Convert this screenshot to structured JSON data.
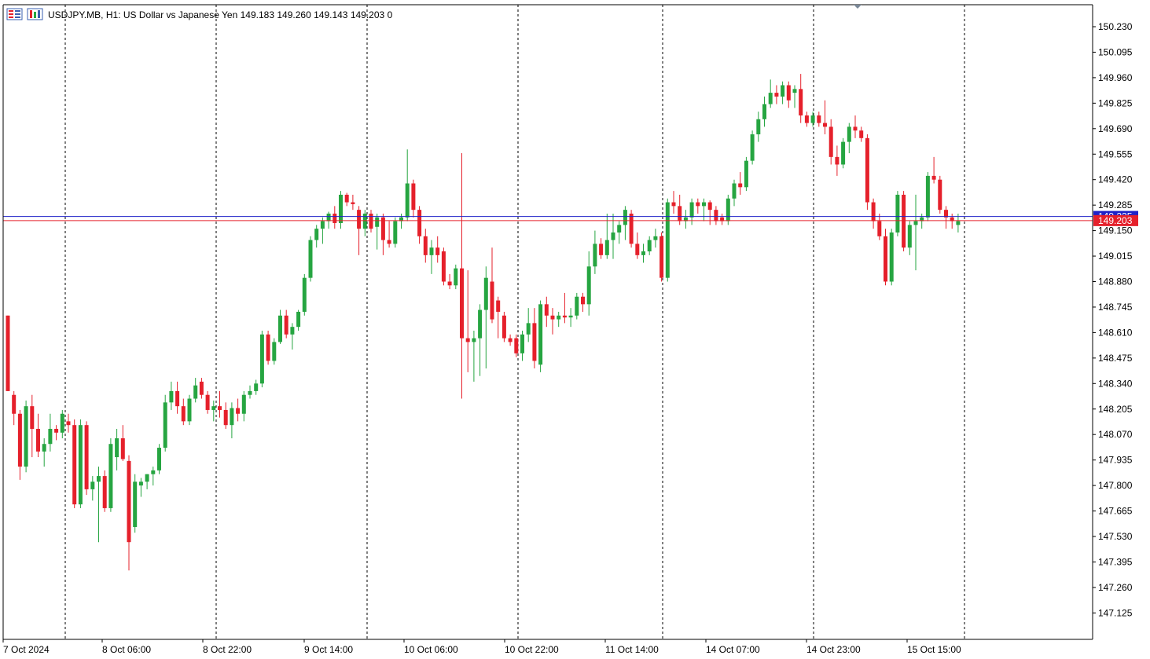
{
  "header": {
    "symbol": "USDJPY.MB",
    "timeframe": "H1:",
    "description": "US Dollar vs Japanese Yen",
    "open": "149.183",
    "high": "149.260",
    "low": "149.143",
    "close": "149.203",
    "volume": "0"
  },
  "colors": {
    "bull": "#26a541",
    "bear": "#e5202b",
    "grid": "#000000",
    "ask_line": "#1f22c8",
    "bid_line": "#e5202b",
    "background": "#ffffff"
  },
  "chart_data": {
    "type": "candlestick",
    "title": "USDJPY.MB, H1: US Dollar vs Japanese Yen",
    "xlabel": "",
    "ylabel": "",
    "ylim": [
      147.04,
      150.31
    ],
    "y_ticks": [
      "150.230",
      "150.095",
      "149.960",
      "149.825",
      "149.690",
      "149.555",
      "149.420",
      "149.285",
      "149.150",
      "149.015",
      "148.880",
      "148.745",
      "148.610",
      "148.475",
      "148.340",
      "148.205",
      "148.070",
      "147.935",
      "147.800",
      "147.665",
      "147.530",
      "147.395",
      "147.260",
      "147.125"
    ],
    "x_ticks": [
      "7 Oct 2024",
      "8 Oct 06:00",
      "8 Oct 22:00",
      "9 Oct 14:00",
      "10 Oct 06:00",
      "10 Oct 22:00",
      "11 Oct 14:00",
      "14 Oct 07:00",
      "14 Oct 23:00",
      "15 Oct 15:00"
    ],
    "grid": "vertical-dashed",
    "ask_price": "149.225",
    "bid_price": "149.203",
    "candles": [
      {
        "o": 148.7,
        "h": 148.7,
        "l": 148.3,
        "c": 148.3
      },
      {
        "o": 148.28,
        "h": 148.3,
        "l": 148.12,
        "c": 148.18
      },
      {
        "o": 148.18,
        "h": 148.2,
        "l": 147.83,
        "c": 147.9
      },
      {
        "o": 147.9,
        "h": 148.25,
        "l": 147.87,
        "c": 148.22
      },
      {
        "o": 148.22,
        "h": 148.28,
        "l": 147.95,
        "c": 148.1
      },
      {
        "o": 148.1,
        "h": 148.18,
        "l": 147.95,
        "c": 147.98
      },
      {
        "o": 147.98,
        "h": 148.05,
        "l": 147.9,
        "c": 148.02
      },
      {
        "o": 148.02,
        "h": 148.18,
        "l": 147.98,
        "c": 148.1
      },
      {
        "o": 148.1,
        "h": 148.12,
        "l": 148.04,
        "c": 148.08
      },
      {
        "o": 148.08,
        "h": 148.2,
        "l": 148.05,
        "c": 148.18
      },
      {
        "o": 148.14,
        "h": 148.18,
        "l": 148.08,
        "c": 148.12
      },
      {
        "o": 148.12,
        "h": 148.15,
        "l": 147.68,
        "c": 147.7
      },
      {
        "o": 147.7,
        "h": 148.15,
        "l": 147.68,
        "c": 148.12
      },
      {
        "o": 148.12,
        "h": 148.14,
        "l": 147.75,
        "c": 147.78
      },
      {
        "o": 147.78,
        "h": 147.85,
        "l": 147.72,
        "c": 147.82
      },
      {
        "o": 147.82,
        "h": 147.9,
        "l": 147.5,
        "c": 147.85
      },
      {
        "o": 147.85,
        "h": 147.88,
        "l": 147.66,
        "c": 147.68
      },
      {
        "o": 147.68,
        "h": 148.05,
        "l": 147.66,
        "c": 148.02
      },
      {
        "o": 147.95,
        "h": 148.1,
        "l": 147.88,
        "c": 148.05
      },
      {
        "o": 148.05,
        "h": 148.12,
        "l": 147.93,
        "c": 147.94
      },
      {
        "o": 147.93,
        "h": 147.96,
        "l": 147.35,
        "c": 147.5
      },
      {
        "o": 147.58,
        "h": 147.86,
        "l": 147.55,
        "c": 147.82
      },
      {
        "o": 147.8,
        "h": 147.84,
        "l": 147.74,
        "c": 147.82
      },
      {
        "o": 147.82,
        "h": 147.86,
        "l": 147.78,
        "c": 147.86
      },
      {
        "o": 147.86,
        "h": 147.9,
        "l": 147.8,
        "c": 147.88
      },
      {
        "o": 147.88,
        "h": 148.02,
        "l": 147.86,
        "c": 148.0
      },
      {
        "o": 148.0,
        "h": 148.28,
        "l": 147.98,
        "c": 148.24
      },
      {
        "o": 148.24,
        "h": 148.35,
        "l": 148.2,
        "c": 148.3
      },
      {
        "o": 148.3,
        "h": 148.35,
        "l": 148.18,
        "c": 148.22
      },
      {
        "o": 148.22,
        "h": 148.26,
        "l": 148.12,
        "c": 148.14
      },
      {
        "o": 148.14,
        "h": 148.28,
        "l": 148.12,
        "c": 148.26
      },
      {
        "o": 148.26,
        "h": 148.37,
        "l": 148.24,
        "c": 148.33
      },
      {
        "o": 148.35,
        "h": 148.37,
        "l": 148.26,
        "c": 148.28
      },
      {
        "o": 148.28,
        "h": 148.3,
        "l": 148.18,
        "c": 148.2
      },
      {
        "o": 148.2,
        "h": 148.25,
        "l": 148.14,
        "c": 148.22
      },
      {
        "o": 148.22,
        "h": 148.3,
        "l": 148.16,
        "c": 148.2
      },
      {
        "o": 148.2,
        "h": 148.24,
        "l": 148.1,
        "c": 148.12
      },
      {
        "o": 148.12,
        "h": 148.24,
        "l": 148.05,
        "c": 148.21
      },
      {
        "o": 148.21,
        "h": 148.26,
        "l": 148.14,
        "c": 148.18
      },
      {
        "o": 148.18,
        "h": 148.3,
        "l": 148.14,
        "c": 148.28
      },
      {
        "o": 148.28,
        "h": 148.33,
        "l": 148.26,
        "c": 148.3
      },
      {
        "o": 148.3,
        "h": 148.36,
        "l": 148.28,
        "c": 148.34
      },
      {
        "o": 148.34,
        "h": 148.62,
        "l": 148.32,
        "c": 148.6
      },
      {
        "o": 148.6,
        "h": 148.62,
        "l": 148.44,
        "c": 148.46
      },
      {
        "o": 148.46,
        "h": 148.58,
        "l": 148.44,
        "c": 148.56
      },
      {
        "o": 148.56,
        "h": 148.73,
        "l": 148.55,
        "c": 148.7
      },
      {
        "o": 148.7,
        "h": 148.73,
        "l": 148.58,
        "c": 148.6
      },
      {
        "o": 148.6,
        "h": 148.66,
        "l": 148.52,
        "c": 148.64
      },
      {
        "o": 148.64,
        "h": 148.73,
        "l": 148.62,
        "c": 148.72
      },
      {
        "o": 148.72,
        "h": 148.92,
        "l": 148.7,
        "c": 148.9
      },
      {
        "o": 148.9,
        "h": 149.12,
        "l": 148.88,
        "c": 149.1
      },
      {
        "o": 149.1,
        "h": 149.18,
        "l": 149.06,
        "c": 149.16
      },
      {
        "o": 149.16,
        "h": 149.22,
        "l": 149.08,
        "c": 149.2
      },
      {
        "o": 149.2,
        "h": 149.25,
        "l": 149.16,
        "c": 149.24
      },
      {
        "o": 149.24,
        "h": 149.28,
        "l": 149.16,
        "c": 149.19
      },
      {
        "o": 149.19,
        "h": 149.36,
        "l": 149.16,
        "c": 149.34
      },
      {
        "o": 149.34,
        "h": 149.35,
        "l": 149.28,
        "c": 149.3
      },
      {
        "o": 149.3,
        "h": 149.34,
        "l": 149.26,
        "c": 149.29
      },
      {
        "o": 149.26,
        "h": 149.28,
        "l": 149.02,
        "c": 149.16
      },
      {
        "o": 149.16,
        "h": 149.26,
        "l": 149.12,
        "c": 149.24
      },
      {
        "o": 149.24,
        "h": 149.26,
        "l": 149.14,
        "c": 149.16
      },
      {
        "o": 149.17,
        "h": 149.24,
        "l": 149.05,
        "c": 149.22
      },
      {
        "o": 149.22,
        "h": 149.24,
        "l": 149.02,
        "c": 149.1
      },
      {
        "o": 149.1,
        "h": 149.2,
        "l": 149.06,
        "c": 149.08
      },
      {
        "o": 149.08,
        "h": 149.22,
        "l": 149.06,
        "c": 149.2
      },
      {
        "o": 149.2,
        "h": 149.24,
        "l": 149.16,
        "c": 149.22
      },
      {
        "o": 149.22,
        "h": 149.58,
        "l": 149.2,
        "c": 149.4
      },
      {
        "o": 149.4,
        "h": 149.42,
        "l": 149.22,
        "c": 149.26
      },
      {
        "o": 149.26,
        "h": 149.28,
        "l": 149.08,
        "c": 149.12
      },
      {
        "o": 149.12,
        "h": 149.16,
        "l": 148.98,
        "c": 149.02
      },
      {
        "o": 149.02,
        "h": 149.1,
        "l": 148.92,
        "c": 149.06
      },
      {
        "o": 149.06,
        "h": 149.12,
        "l": 148.98,
        "c": 149.02
      },
      {
        "o": 149.04,
        "h": 149.06,
        "l": 148.86,
        "c": 148.88
      },
      {
        "o": 148.88,
        "h": 148.92,
        "l": 148.84,
        "c": 148.86
      },
      {
        "o": 148.86,
        "h": 148.97,
        "l": 148.84,
        "c": 148.95
      },
      {
        "o": 148.95,
        "h": 149.56,
        "l": 148.26,
        "c": 148.58
      },
      {
        "o": 148.58,
        "h": 148.94,
        "l": 148.4,
        "c": 148.56
      },
      {
        "o": 148.56,
        "h": 148.62,
        "l": 148.35,
        "c": 148.58
      },
      {
        "o": 148.58,
        "h": 148.76,
        "l": 148.38,
        "c": 148.73
      },
      {
        "o": 148.73,
        "h": 148.96,
        "l": 148.42,
        "c": 148.9
      },
      {
        "o": 148.88,
        "h": 149.06,
        "l": 148.66,
        "c": 148.68
      },
      {
        "o": 148.78,
        "h": 148.8,
        "l": 148.58,
        "c": 148.72
      },
      {
        "o": 148.7,
        "h": 148.72,
        "l": 148.56,
        "c": 148.58
      },
      {
        "o": 148.58,
        "h": 148.6,
        "l": 148.54,
        "c": 148.56
      },
      {
        "o": 148.58,
        "h": 148.6,
        "l": 148.48,
        "c": 148.5
      },
      {
        "o": 148.5,
        "h": 148.62,
        "l": 148.46,
        "c": 148.6
      },
      {
        "o": 148.6,
        "h": 148.74,
        "l": 148.56,
        "c": 148.66
      },
      {
        "o": 148.66,
        "h": 148.74,
        "l": 148.42,
        "c": 148.46
      },
      {
        "o": 148.44,
        "h": 148.78,
        "l": 148.4,
        "c": 148.76
      },
      {
        "o": 148.76,
        "h": 148.8,
        "l": 148.64,
        "c": 148.7
      },
      {
        "o": 148.7,
        "h": 148.74,
        "l": 148.6,
        "c": 148.68
      },
      {
        "o": 148.68,
        "h": 148.72,
        "l": 148.64,
        "c": 148.7
      },
      {
        "o": 148.7,
        "h": 148.82,
        "l": 148.66,
        "c": 148.69
      },
      {
        "o": 148.69,
        "h": 148.74,
        "l": 148.64,
        "c": 148.7
      },
      {
        "o": 148.7,
        "h": 148.82,
        "l": 148.68,
        "c": 148.8
      },
      {
        "o": 148.8,
        "h": 148.82,
        "l": 148.72,
        "c": 148.76
      },
      {
        "o": 148.76,
        "h": 149.04,
        "l": 148.7,
        "c": 148.96
      },
      {
        "o": 148.96,
        "h": 149.15,
        "l": 148.92,
        "c": 149.08
      },
      {
        "o": 149.08,
        "h": 149.11,
        "l": 149.0,
        "c": 149.02
      },
      {
        "o": 149.02,
        "h": 149.24,
        "l": 149.0,
        "c": 149.1
      },
      {
        "o": 149.1,
        "h": 149.24,
        "l": 149.0,
        "c": 149.14
      },
      {
        "o": 149.14,
        "h": 149.2,
        "l": 149.08,
        "c": 149.18
      },
      {
        "o": 149.18,
        "h": 149.28,
        "l": 149.1,
        "c": 149.26
      },
      {
        "o": 149.24,
        "h": 149.26,
        "l": 149.06,
        "c": 149.08
      },
      {
        "o": 149.08,
        "h": 149.14,
        "l": 149.0,
        "c": 149.02
      },
      {
        "o": 149.02,
        "h": 149.08,
        "l": 148.98,
        "c": 149.04
      },
      {
        "o": 149.04,
        "h": 149.12,
        "l": 149.02,
        "c": 149.1
      },
      {
        "o": 149.1,
        "h": 149.16,
        "l": 149.06,
        "c": 149.12
      },
      {
        "o": 149.12,
        "h": 149.14,
        "l": 148.88,
        "c": 148.9
      },
      {
        "o": 148.9,
        "h": 149.32,
        "l": 148.88,
        "c": 149.3
      },
      {
        "o": 149.3,
        "h": 149.36,
        "l": 149.24,
        "c": 149.28
      },
      {
        "o": 149.28,
        "h": 149.34,
        "l": 149.18,
        "c": 149.2
      },
      {
        "o": 149.2,
        "h": 149.26,
        "l": 149.16,
        "c": 149.22
      },
      {
        "o": 149.22,
        "h": 149.32,
        "l": 149.18,
        "c": 149.3
      },
      {
        "o": 149.3,
        "h": 149.32,
        "l": 149.24,
        "c": 149.28
      },
      {
        "o": 149.28,
        "h": 149.32,
        "l": 149.2,
        "c": 149.3
      },
      {
        "o": 149.3,
        "h": 149.31,
        "l": 149.18,
        "c": 149.26
      },
      {
        "o": 149.26,
        "h": 149.28,
        "l": 149.18,
        "c": 149.2
      },
      {
        "o": 149.22,
        "h": 149.24,
        "l": 149.18,
        "c": 149.2
      },
      {
        "o": 149.2,
        "h": 149.34,
        "l": 149.18,
        "c": 149.32
      },
      {
        "o": 149.32,
        "h": 149.42,
        "l": 149.28,
        "c": 149.4
      },
      {
        "o": 149.4,
        "h": 149.46,
        "l": 149.34,
        "c": 149.38
      },
      {
        "o": 149.38,
        "h": 149.54,
        "l": 149.36,
        "c": 149.52
      },
      {
        "o": 149.52,
        "h": 149.68,
        "l": 149.5,
        "c": 149.66
      },
      {
        "o": 149.66,
        "h": 149.78,
        "l": 149.62,
        "c": 149.74
      },
      {
        "o": 149.74,
        "h": 149.86,
        "l": 149.7,
        "c": 149.82
      },
      {
        "o": 149.82,
        "h": 149.95,
        "l": 149.8,
        "c": 149.88
      },
      {
        "o": 149.88,
        "h": 149.92,
        "l": 149.82,
        "c": 149.86
      },
      {
        "o": 149.86,
        "h": 149.94,
        "l": 149.82,
        "c": 149.92
      },
      {
        "o": 149.92,
        "h": 149.94,
        "l": 149.8,
        "c": 149.84
      },
      {
        "o": 149.88,
        "h": 149.92,
        "l": 149.8,
        "c": 149.9
      },
      {
        "o": 149.9,
        "h": 149.98,
        "l": 149.72,
        "c": 149.76
      },
      {
        "o": 149.76,
        "h": 149.78,
        "l": 149.7,
        "c": 149.72
      },
      {
        "o": 149.72,
        "h": 149.78,
        "l": 149.7,
        "c": 149.76
      },
      {
        "o": 149.76,
        "h": 149.78,
        "l": 149.7,
        "c": 149.72
      },
      {
        "o": 149.72,
        "h": 149.84,
        "l": 149.66,
        "c": 149.7
      },
      {
        "o": 149.7,
        "h": 149.74,
        "l": 149.5,
        "c": 149.54
      },
      {
        "o": 149.54,
        "h": 149.6,
        "l": 149.44,
        "c": 149.5
      },
      {
        "o": 149.5,
        "h": 149.64,
        "l": 149.48,
        "c": 149.62
      },
      {
        "o": 149.62,
        "h": 149.72,
        "l": 149.56,
        "c": 149.7
      },
      {
        "o": 149.7,
        "h": 149.76,
        "l": 149.64,
        "c": 149.68
      },
      {
        "o": 149.68,
        "h": 149.7,
        "l": 149.62,
        "c": 149.64
      },
      {
        "o": 149.64,
        "h": 149.66,
        "l": 149.26,
        "c": 149.3
      },
      {
        "o": 149.3,
        "h": 149.32,
        "l": 149.16,
        "c": 149.2
      },
      {
        "o": 149.2,
        "h": 149.24,
        "l": 149.1,
        "c": 149.12
      },
      {
        "o": 149.12,
        "h": 149.16,
        "l": 148.86,
        "c": 148.88
      },
      {
        "o": 148.88,
        "h": 149.16,
        "l": 148.86,
        "c": 149.14
      },
      {
        "o": 149.14,
        "h": 149.36,
        "l": 149.12,
        "c": 149.34
      },
      {
        "o": 149.34,
        "h": 149.36,
        "l": 149.04,
        "c": 149.06
      },
      {
        "o": 149.06,
        "h": 149.2,
        "l": 149.02,
        "c": 149.18
      },
      {
        "o": 149.18,
        "h": 149.34,
        "l": 148.94,
        "c": 149.2
      },
      {
        "o": 149.2,
        "h": 149.24,
        "l": 149.16,
        "c": 149.22
      },
      {
        "o": 149.22,
        "h": 149.46,
        "l": 149.2,
        "c": 149.44
      },
      {
        "o": 149.44,
        "h": 149.54,
        "l": 149.4,
        "c": 149.42
      },
      {
        "o": 149.42,
        "h": 149.44,
        "l": 149.24,
        "c": 149.26
      },
      {
        "o": 149.26,
        "h": 149.28,
        "l": 149.16,
        "c": 149.22
      },
      {
        "o": 149.22,
        "h": 149.24,
        "l": 149.16,
        "c": 149.2
      },
      {
        "o": 149.18,
        "h": 149.24,
        "l": 149.14,
        "c": 149.2
      }
    ]
  }
}
